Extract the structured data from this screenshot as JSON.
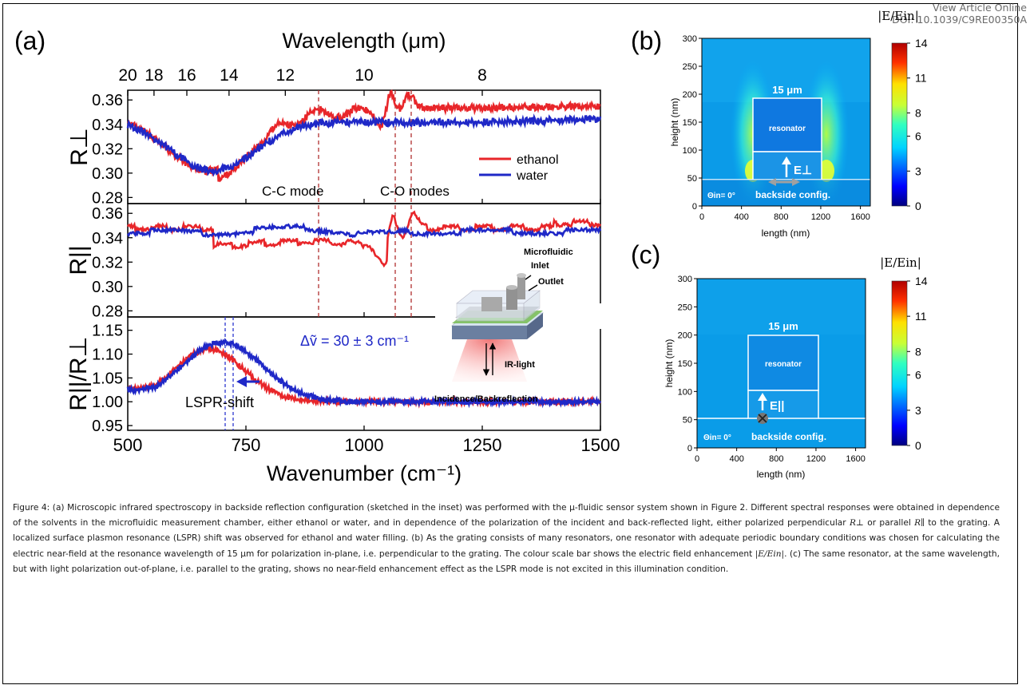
{
  "header": {
    "view_online": "View Article Online",
    "doi": "DOI: 10.1039/C9RE00350A"
  },
  "panel_a": {
    "label": "(a)",
    "top_axis_title": "Wavelength (μm)",
    "top_ticks": [
      "20",
      "18",
      "16",
      "14",
      "12",
      "10",
      "8"
    ],
    "bottom_axis_title": "Wavenumber (cm⁻¹)",
    "bottom_ticks": [
      "500",
      "750",
      "1000",
      "1250",
      "1500"
    ],
    "sub1": {
      "ylabel": "R⊥",
      "yticks": [
        "0.36",
        "0.34",
        "0.32",
        "0.30",
        "0.28"
      ]
    },
    "sub2": {
      "ylabel": "R||",
      "yticks": [
        "0.36",
        "0.34",
        "0.32",
        "0.30",
        "0.28"
      ]
    },
    "sub3": {
      "ylabel": "R||/R⊥",
      "yticks": [
        "1.15",
        "1.10",
        "1.05",
        "1.00",
        "0.95"
      ]
    },
    "legend": {
      "ethanol": "ethanol",
      "water": "water"
    },
    "annotations": {
      "cc_mode": "C-C mode",
      "co_modes": "C-O modes",
      "delta_v": "Δṽ = 30 ± 3 cm⁻¹",
      "lspr": "LSPR-shift"
    },
    "inset": {
      "microfluidic": "Microfluidic",
      "inlet": "Inlet",
      "outlet": "Outlet",
      "ir_light": "IR-light",
      "incidence": "Incidence/Backreflection"
    },
    "colors": {
      "ethanol": "#e8262a",
      "water": "#1f28c7",
      "dashed": "#b03030"
    }
  },
  "panel_b": {
    "label": "(b)",
    "colorbar_title": "|E/Ein|",
    "colorbar_ticks": [
      "0",
      "3",
      "6",
      "8",
      "11",
      "14"
    ],
    "xlabel": "length (nm)",
    "ylabel": "height (nm)",
    "xticks": [
      "0",
      "400",
      "800",
      "1200",
      "1600"
    ],
    "yticks": [
      "0",
      "50",
      "100",
      "150",
      "200",
      "250",
      "300"
    ],
    "width_label": "15 μm",
    "resonator": "resonator",
    "field": "E⊥",
    "angle": "Θin= 0°",
    "config": "backside config."
  },
  "panel_c": {
    "label": "(c)",
    "colorbar_title": "|E/Ein|",
    "colorbar_ticks": [
      "0",
      "3",
      "6",
      "8",
      "11",
      "14"
    ],
    "xlabel": "length (nm)",
    "ylabel": "height (nm)",
    "xticks": [
      "0",
      "400",
      "800",
      "1200",
      "1600"
    ],
    "yticks": [
      "0",
      "50",
      "100",
      "150",
      "200",
      "250",
      "300"
    ],
    "width_label": "15 μm",
    "resonator": "resonator",
    "field": "E||",
    "angle": "Θin= 0°",
    "config": "backside config."
  },
  "caption": {
    "p1": "Figure 4: (a) Microscopic infrared spectroscopy in backside reflection configuration (sketched in the inset) was performed with the µ-fluidic sensor system shown in Figure 2. Different spectral responses were obtained in dependence of the solvents in the microfluidic measurement chamber, either ethanol or water, and in dependence of the polarization of the incident and back-reflected light, either polarized perpendicular",
    "r_perp": "R⊥",
    "p2": "or parallel",
    "r_par": "R∥",
    "p3": "to the grating. A localized surface plasmon resonance (LSPR) shift was observed for ethanol and water filling. (b) As the grating consists of many resonators, one resonator with adequate periodic boundary conditions was chosen for calculating the electric near-field at the resonance wavelength of 15 µm for polarization in-plane, i.e. perpendicular to the grating. The colour scale bar shows the electric field enhancement",
    "eein": "|E/Ein|",
    "p4": ". (c) The same resonator, at the same wavelength, but with light polarization out-of-plane, i.e. parallel to the grating, shows no near-field enhancement effect as the LSPR mode is not excited in this illumination condition."
  }
}
